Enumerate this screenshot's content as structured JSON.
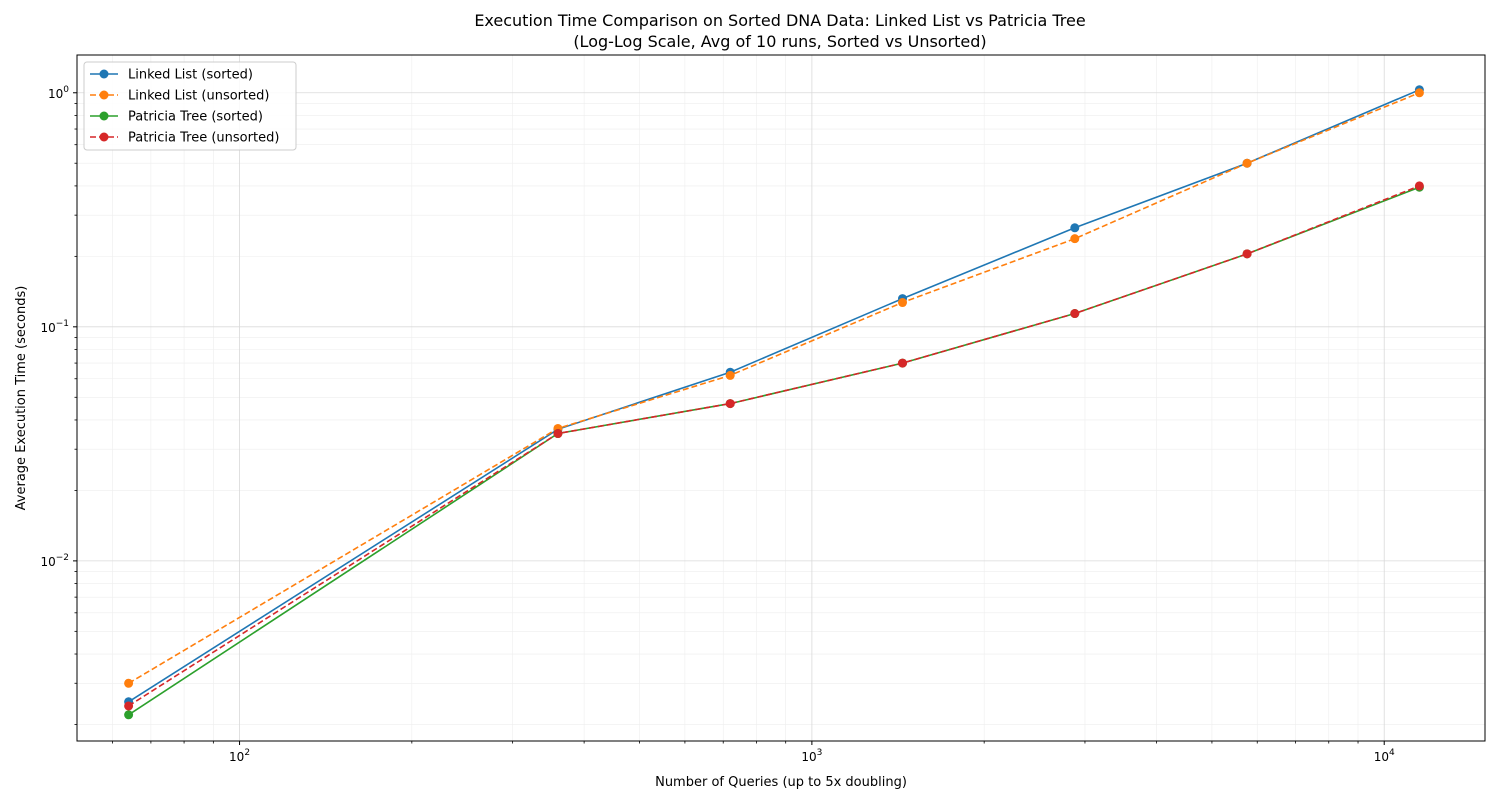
{
  "chart_data": {
    "type": "line",
    "title": "Execution Time Comparison on Sorted DNA Data: Linked List vs Patricia Tree",
    "subtitle": "(Log-Log Scale, Avg of 10 runs, Sorted vs Unsorted)",
    "xlabel": "Number of Queries (up to 5x doubling)",
    "ylabel": "Average Execution Time (seconds)",
    "x_scale": "log",
    "y_scale": "log",
    "xlim": [
      52,
      15000
    ],
    "ylim": [
      0.0017,
      1.45
    ],
    "x_ticks": [
      {
        "base": "10",
        "exp": "2",
        "value": 100
      },
      {
        "base": "10",
        "exp": "3",
        "value": 1000
      },
      {
        "base": "10",
        "exp": "4",
        "value": 10000
      }
    ],
    "y_ticks": [
      {
        "base": "10",
        "exp": "−2",
        "value": 0.01
      },
      {
        "base": "10",
        "exp": "−1",
        "value": 0.1
      },
      {
        "base": "10",
        "exp": "0",
        "value": 1
      }
    ],
    "grid": true,
    "legend_position": "top-left",
    "x": [
      64,
      360,
      720,
      1440,
      2880,
      5760,
      11520
    ],
    "series": [
      {
        "name": "Linked List (sorted)",
        "color": "#1f77b4",
        "dashed": false,
        "values": [
          0.0025,
          0.0365,
          0.064,
          0.132,
          0.265,
          0.5,
          1.03
        ]
      },
      {
        "name": "Linked List (unsorted)",
        "color": "#ff7f0e",
        "dashed": true,
        "values": [
          0.003,
          0.0368,
          0.062,
          0.127,
          0.238,
          0.5,
          1.0
        ]
      },
      {
        "name": "Patricia Tree (sorted)",
        "color": "#2ca02c",
        "dashed": false,
        "values": [
          0.0022,
          0.035,
          0.047,
          0.07,
          0.114,
          0.205,
          0.395
        ]
      },
      {
        "name": "Patricia Tree (unsorted)",
        "color": "#d62728",
        "dashed": true,
        "values": [
          0.0024,
          0.035,
          0.047,
          0.07,
          0.114,
          0.205,
          0.4
        ]
      }
    ]
  }
}
